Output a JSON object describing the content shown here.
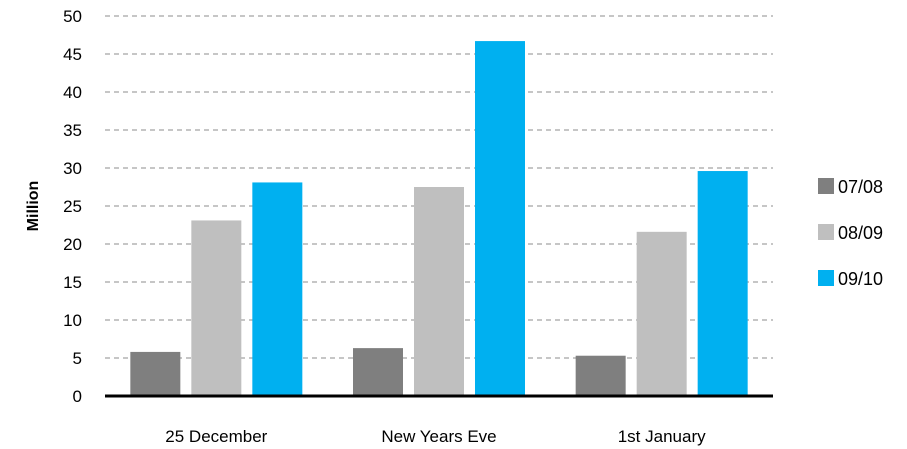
{
  "chart_data": {
    "type": "bar",
    "categories": [
      "25 December",
      "New Years Eve",
      "1st January"
    ],
    "series": [
      {
        "name": "07/08",
        "values": [
          5.8,
          6.3,
          5.3
        ],
        "color": "#7f7f7f"
      },
      {
        "name": "08/09",
        "values": [
          23.1,
          27.5,
          21.6
        ],
        "color": "#bfbfbf"
      },
      {
        "name": "09/10",
        "values": [
          28.1,
          46.7,
          29.6
        ],
        "color": "#00b0f0"
      }
    ],
    "title": "",
    "xlabel": "",
    "ylabel": "Million",
    "ylim": [
      0,
      50
    ],
    "yticks": [
      0,
      5,
      10,
      15,
      20,
      25,
      30,
      35,
      40,
      45,
      50
    ],
    "grid": true,
    "legend_position": "right"
  }
}
